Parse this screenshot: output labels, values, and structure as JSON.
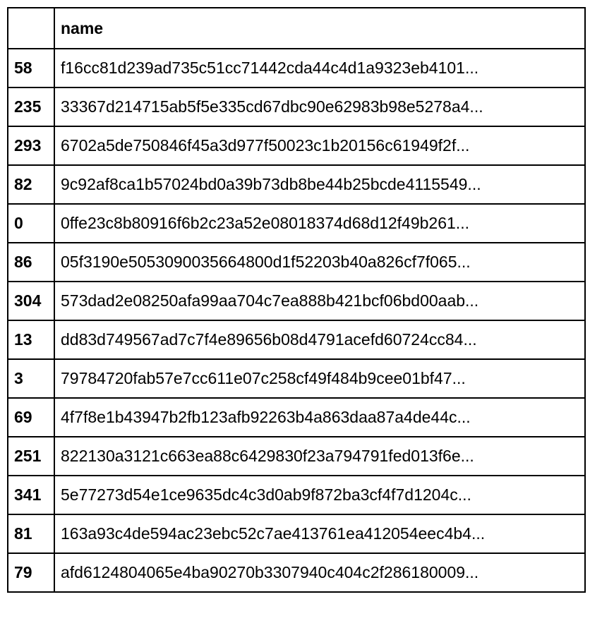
{
  "table": {
    "header": {
      "index": "",
      "name": "name"
    },
    "rows": [
      {
        "index": "58",
        "name": "f16cc81d239ad735c51cc71442cda44c4d1a9323eb4101..."
      },
      {
        "index": "235",
        "name": "33367d214715ab5f5e335cd67dbc90e62983b98e5278a4..."
      },
      {
        "index": "293",
        "name": "6702a5de750846f45a3d977f50023c1b20156c61949f2f..."
      },
      {
        "index": "82",
        "name": "9c92af8ca1b57024bd0a39b73db8be44b25bcde4115549..."
      },
      {
        "index": "0",
        "name": "0ffe23c8b80916f6b2c23a52e08018374d68d12f49b261..."
      },
      {
        "index": "86",
        "name": "05f3190e5053090035664800d1f52203b40a826cf7f065..."
      },
      {
        "index": "304",
        "name": "573dad2e08250afa99aa704c7ea888b421bcf06bd00aab..."
      },
      {
        "index": "13",
        "name": "dd83d749567ad7c7f4e89656b08d4791acefd60724cc84..."
      },
      {
        "index": "3",
        "name": "79784720fab57e7cc611e07c258cf49f484b9cee01bf47..."
      },
      {
        "index": "69",
        "name": "4f7f8e1b43947b2fb123afb92263b4a863daa87a4de44c..."
      },
      {
        "index": "251",
        "name": "822130a3121c663ea88c6429830f23a794791fed013f6e..."
      },
      {
        "index": "341",
        "name": "5e77273d54e1ce9635dc4c3d0ab9f872ba3cf4f7d1204c..."
      },
      {
        "index": "81",
        "name": "163a93c4de594ac23ebc52c7ae413761ea412054eec4b4..."
      },
      {
        "index": "79",
        "name": "afd6124804065e4ba90270b3307940c404c2f286180009..."
      }
    ]
  }
}
